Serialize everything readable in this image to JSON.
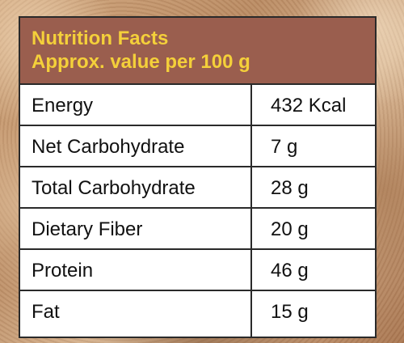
{
  "header": {
    "title": "Nutrition Facts",
    "subtitle": "Approx. value per 100 g"
  },
  "rows": [
    {
      "label": "Energy",
      "value": "432 Kcal"
    },
    {
      "label": "Net Carbohydrate",
      "value": "7 g"
    },
    {
      "label": "Total Carbohydrate",
      "value": "28 g"
    },
    {
      "label": "Dietary Fiber",
      "value": "20 g"
    },
    {
      "label": "Protein",
      "value": "46 g"
    },
    {
      "label": "Fat",
      "value": "15 g"
    }
  ],
  "colors": {
    "header_bg": "#9a5e4e",
    "header_text": "#f4d03a"
  }
}
